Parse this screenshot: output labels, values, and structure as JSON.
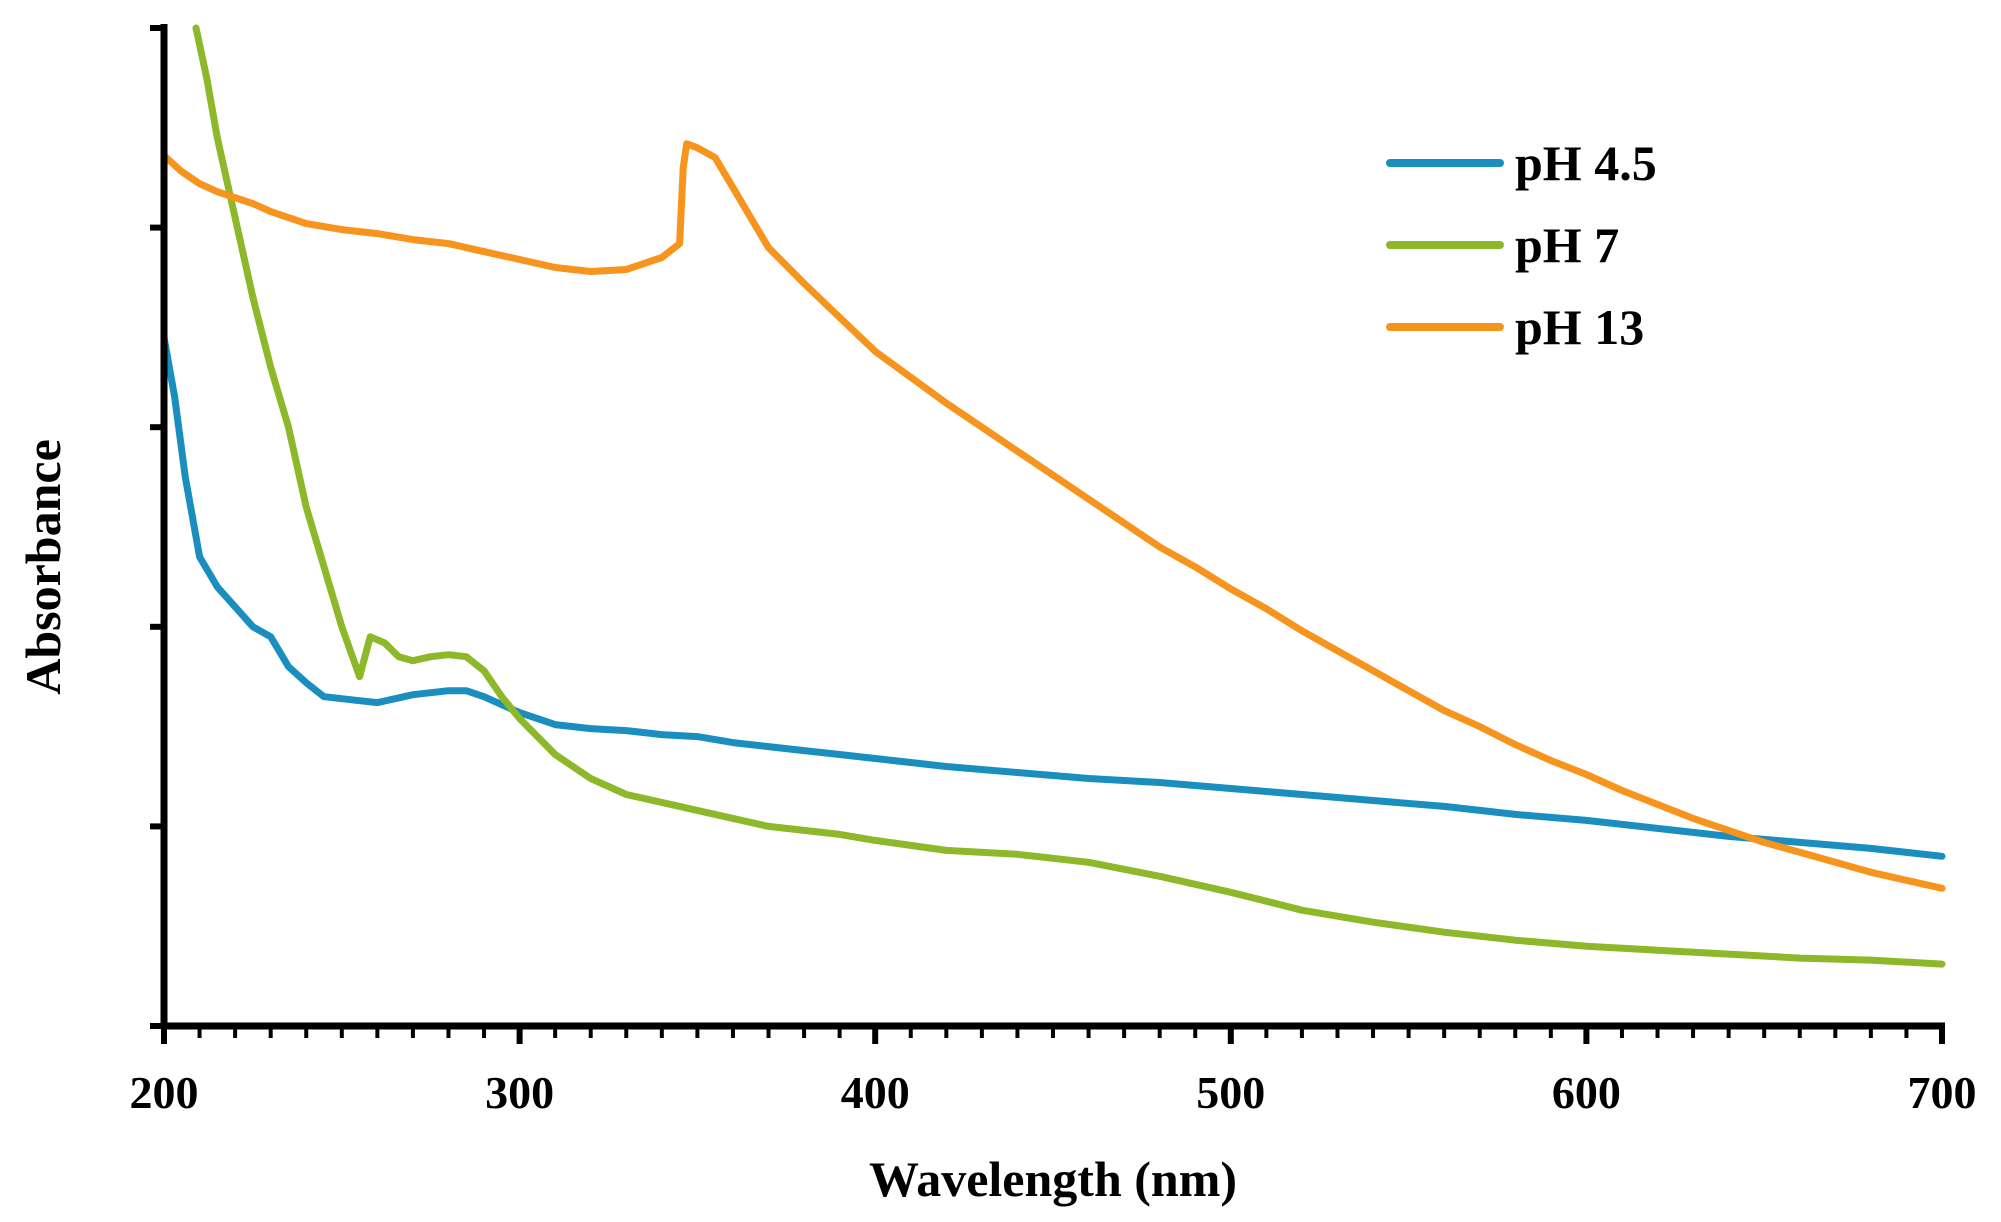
{
  "chart_data": {
    "type": "line",
    "title": "",
    "xlabel": "Wavelength (nm)",
    "ylabel": "Absorbance",
    "xlim": [
      200,
      700
    ],
    "ylim": [
      0,
      5
    ],
    "x_ticks": [
      "200",
      "300",
      "400",
      "500",
      "600",
      "700"
    ],
    "x_minor_tick_step": 10,
    "y_ticks_labeled": false,
    "y_tick_count": 5,
    "grid": false,
    "legend_position": "top-right",
    "series": [
      {
        "name": "pH 4.5",
        "color": "#1a8fbf",
        "points": [
          [
            200,
            3.45
          ],
          [
            203,
            3.15
          ],
          [
            206,
            2.75
          ],
          [
            210,
            2.35
          ],
          [
            215,
            2.2
          ],
          [
            220,
            2.1
          ],
          [
            225,
            2.0
          ],
          [
            230,
            1.95
          ],
          [
            235,
            1.8
          ],
          [
            240,
            1.72
          ],
          [
            245,
            1.65
          ],
          [
            250,
            1.64
          ],
          [
            255,
            1.63
          ],
          [
            260,
            1.62
          ],
          [
            265,
            1.64
          ],
          [
            270,
            1.66
          ],
          [
            275,
            1.67
          ],
          [
            280,
            1.68
          ],
          [
            285,
            1.68
          ],
          [
            290,
            1.65
          ],
          [
            300,
            1.57
          ],
          [
            310,
            1.51
          ],
          [
            320,
            1.49
          ],
          [
            330,
            1.48
          ],
          [
            340,
            1.46
          ],
          [
            350,
            1.45
          ],
          [
            360,
            1.42
          ],
          [
            370,
            1.4
          ],
          [
            380,
            1.38
          ],
          [
            390,
            1.36
          ],
          [
            400,
            1.34
          ],
          [
            420,
            1.3
          ],
          [
            440,
            1.27
          ],
          [
            460,
            1.24
          ],
          [
            480,
            1.22
          ],
          [
            500,
            1.19
          ],
          [
            520,
            1.16
          ],
          [
            540,
            1.13
          ],
          [
            560,
            1.1
          ],
          [
            580,
            1.06
          ],
          [
            600,
            1.03
          ],
          [
            620,
            0.99
          ],
          [
            640,
            0.95
          ],
          [
            660,
            0.92
          ],
          [
            680,
            0.89
          ],
          [
            700,
            0.85
          ]
        ]
      },
      {
        "name": "pH 7",
        "color": "#8db829",
        "points": [
          [
            209,
            5.0
          ],
          [
            212,
            4.75
          ],
          [
            215,
            4.45
          ],
          [
            220,
            4.05
          ],
          [
            225,
            3.65
          ],
          [
            230,
            3.3
          ],
          [
            235,
            3.0
          ],
          [
            240,
            2.6
          ],
          [
            245,
            2.3
          ],
          [
            250,
            2.0
          ],
          [
            255,
            1.75
          ],
          [
            258,
            1.95
          ],
          [
            262,
            1.92
          ],
          [
            266,
            1.85
          ],
          [
            270,
            1.83
          ],
          [
            275,
            1.85
          ],
          [
            280,
            1.86
          ],
          [
            285,
            1.85
          ],
          [
            290,
            1.78
          ],
          [
            295,
            1.65
          ],
          [
            300,
            1.54
          ],
          [
            305,
            1.45
          ],
          [
            310,
            1.36
          ],
          [
            315,
            1.3
          ],
          [
            320,
            1.24
          ],
          [
            330,
            1.16
          ],
          [
            340,
            1.12
          ],
          [
            350,
            1.08
          ],
          [
            360,
            1.04
          ],
          [
            370,
            1.0
          ],
          [
            380,
            0.98
          ],
          [
            390,
            0.96
          ],
          [
            400,
            0.93
          ],
          [
            420,
            0.88
          ],
          [
            440,
            0.86
          ],
          [
            460,
            0.82
          ],
          [
            480,
            0.75
          ],
          [
            500,
            0.67
          ],
          [
            520,
            0.58
          ],
          [
            540,
            0.52
          ],
          [
            560,
            0.47
          ],
          [
            580,
            0.43
          ],
          [
            600,
            0.4
          ],
          [
            620,
            0.38
          ],
          [
            640,
            0.36
          ],
          [
            660,
            0.34
          ],
          [
            680,
            0.33
          ],
          [
            700,
            0.31
          ]
        ]
      },
      {
        "name": "pH 13",
        "color": "#f7941d",
        "points": [
          [
            200,
            4.36
          ],
          [
            205,
            4.28
          ],
          [
            210,
            4.22
          ],
          [
            215,
            4.18
          ],
          [
            220,
            4.15
          ],
          [
            225,
            4.12
          ],
          [
            230,
            4.08
          ],
          [
            240,
            4.02
          ],
          [
            250,
            3.99
          ],
          [
            260,
            3.97
          ],
          [
            270,
            3.94
          ],
          [
            280,
            3.92
          ],
          [
            290,
            3.88
          ],
          [
            300,
            3.84
          ],
          [
            310,
            3.8
          ],
          [
            320,
            3.78
          ],
          [
            330,
            3.79
          ],
          [
            340,
            3.85
          ],
          [
            345,
            3.92
          ],
          [
            346,
            4.3
          ],
          [
            347,
            4.42
          ],
          [
            350,
            4.4
          ],
          [
            355,
            4.35
          ],
          [
            360,
            4.2
          ],
          [
            365,
            4.05
          ],
          [
            370,
            3.9
          ],
          [
            380,
            3.72
          ],
          [
            390,
            3.55
          ],
          [
            400,
            3.38
          ],
          [
            410,
            3.25
          ],
          [
            420,
            3.12
          ],
          [
            430,
            3.0
          ],
          [
            440,
            2.88
          ],
          [
            450,
            2.76
          ],
          [
            460,
            2.64
          ],
          [
            470,
            2.52
          ],
          [
            480,
            2.4
          ],
          [
            490,
            2.3
          ],
          [
            500,
            2.19
          ],
          [
            510,
            2.09
          ],
          [
            520,
            1.98
          ],
          [
            530,
            1.88
          ],
          [
            540,
            1.78
          ],
          [
            550,
            1.68
          ],
          [
            560,
            1.58
          ],
          [
            570,
            1.5
          ],
          [
            580,
            1.41
          ],
          [
            590,
            1.33
          ],
          [
            600,
            1.26
          ],
          [
            610,
            1.18
          ],
          [
            620,
            1.11
          ],
          [
            630,
            1.04
          ],
          [
            640,
            0.98
          ],
          [
            650,
            0.92
          ],
          [
            660,
            0.87
          ],
          [
            670,
            0.82
          ],
          [
            680,
            0.77
          ],
          [
            690,
            0.73
          ],
          [
            700,
            0.69
          ]
        ]
      }
    ]
  }
}
